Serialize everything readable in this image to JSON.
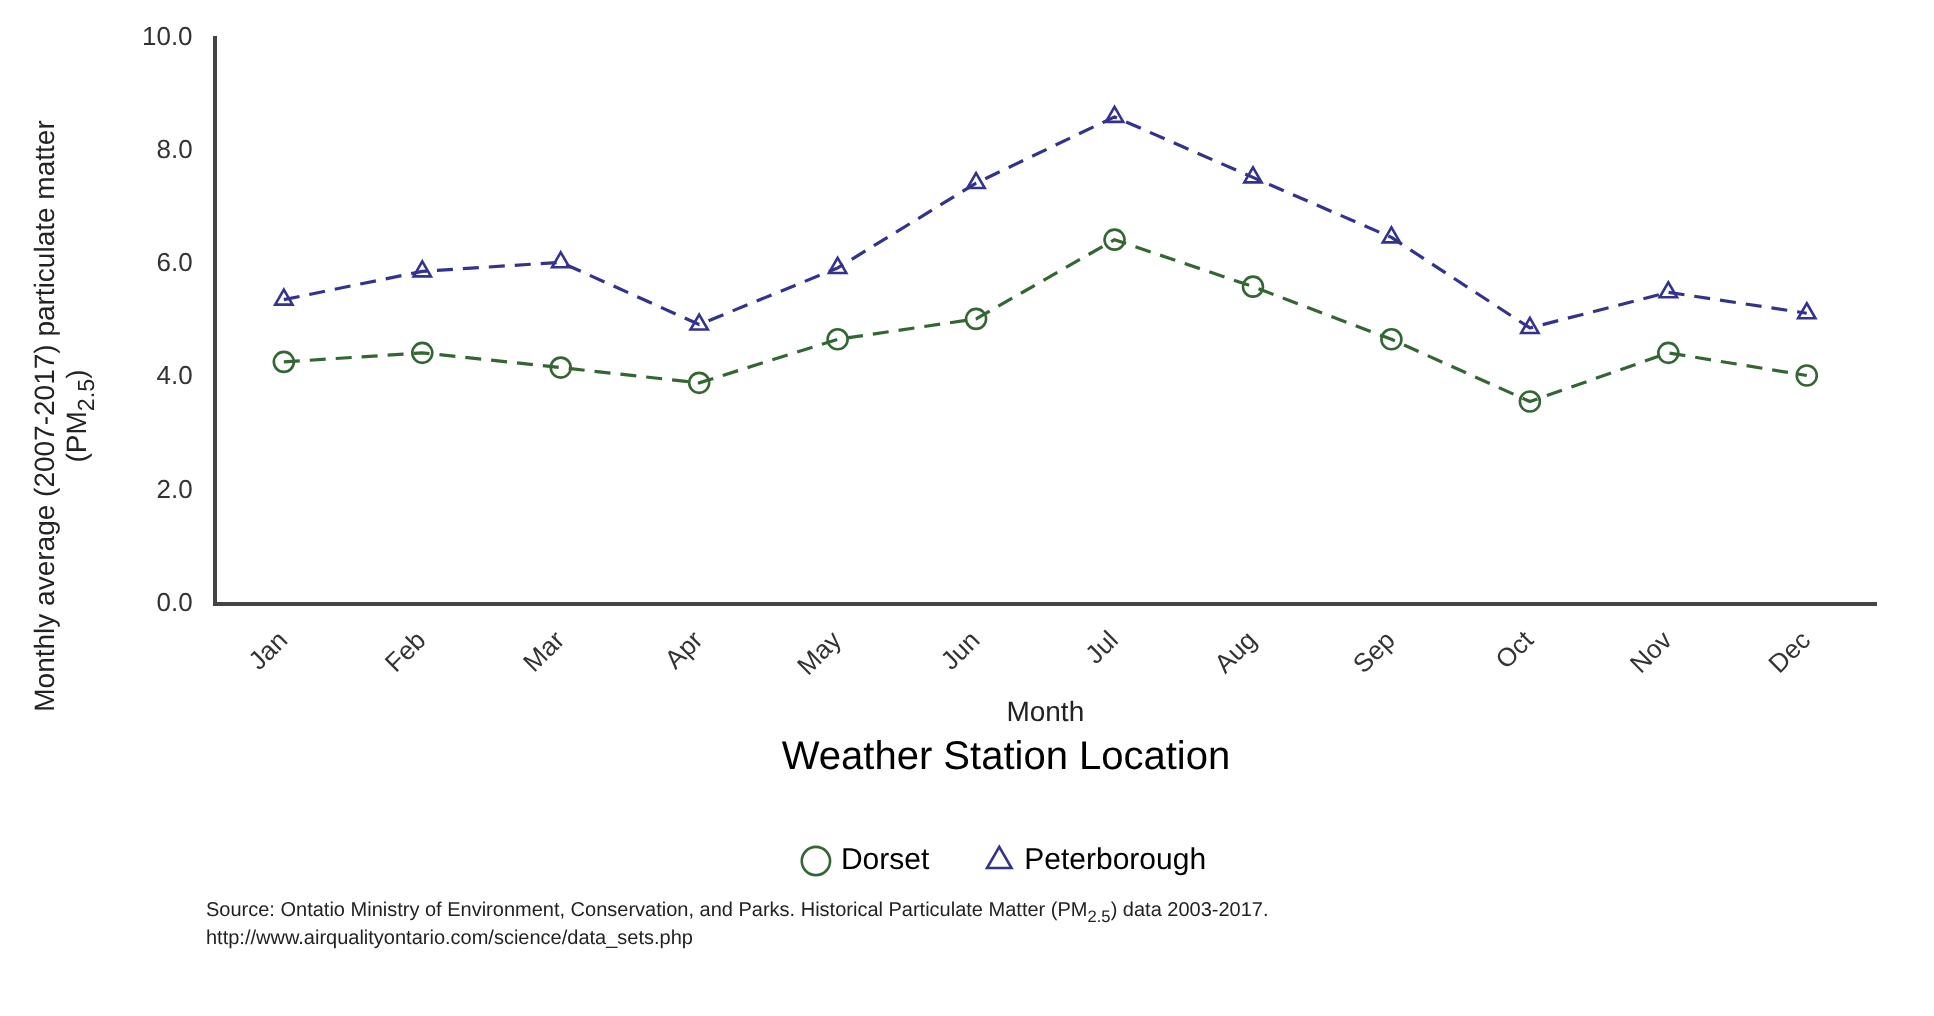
{
  "chart_data": {
    "type": "line",
    "xlabel": "Month",
    "ylabel": "Monthly average (2007-2017) particulate matter (PM$_{2.5}$)",
    "legend_title": "Weather Station Location",
    "legend": "bottom",
    "grid": false,
    "line_style": "dashed",
    "categories": [
      "Jan",
      "Feb",
      "Mar",
      "Apr",
      "May",
      "Jun",
      "Jul",
      "Aug",
      "Sep",
      "Oct",
      "Nov",
      "Dec"
    ],
    "ylim": [
      0,
      10
    ],
    "yticks": [
      {
        "value": 0,
        "label": "0.0"
      },
      {
        "value": 2,
        "label": "2.0"
      },
      {
        "value": 4,
        "label": "4.0"
      },
      {
        "value": 6,
        "label": "6.0"
      },
      {
        "value": 8,
        "label": "8.0"
      },
      {
        "value": 10,
        "label": "10.0"
      }
    ],
    "series": [
      {
        "name": "Dorset",
        "color": "#336633",
        "marker": "circle",
        "values": [
          4.27,
          4.43,
          4.17,
          3.9,
          4.67,
          5.03,
          6.43,
          5.6,
          4.67,
          3.57,
          4.43,
          4.03
        ]
      },
      {
        "name": "Peterborough",
        "color": "#33338f",
        "marker": "triangle",
        "values": [
          5.37,
          5.87,
          6.03,
          4.93,
          5.93,
          7.43,
          8.6,
          7.53,
          6.47,
          4.87,
          5.5,
          5.13
        ]
      }
    ],
    "annotations": [
      "Source: Ontatio Ministry of Environment, Conservation, and Parks. Historical Particulate Matter (PM$_{2.5}$) data 2003-2017.",
      "http://www.airqualityontario.com/science/data_sets.php"
    ]
  }
}
